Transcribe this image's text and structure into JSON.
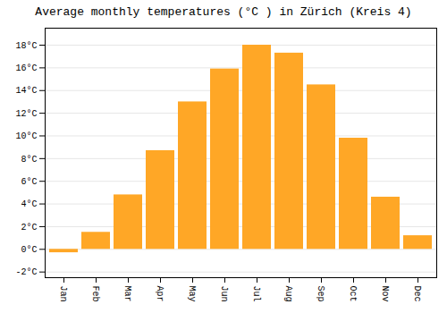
{
  "chart_data": {
    "type": "bar",
    "title": "Average monthly temperatures (°C ) in Zürich (Kreis 4)",
    "categories": [
      "Jan",
      "Feb",
      "Mar",
      "Apr",
      "May",
      "Jun",
      "Jul",
      "Aug",
      "Sep",
      "Oct",
      "Nov",
      "Dec"
    ],
    "values": [
      -0.3,
      1.5,
      4.8,
      8.7,
      13.0,
      15.9,
      18.0,
      17.3,
      14.5,
      9.8,
      4.6,
      1.2
    ],
    "color": "#FFA726",
    "ylim": [
      -2.5,
      19.5
    ],
    "yticks": [
      {
        "value": -2,
        "label": "-2°C"
      },
      {
        "value": 0,
        "label": "0°C"
      },
      {
        "value": 2,
        "label": "2°C"
      },
      {
        "value": 4,
        "label": "4°C"
      },
      {
        "value": 6,
        "label": "6°C"
      },
      {
        "value": 8,
        "label": "8°C"
      },
      {
        "value": 10,
        "label": "10°C"
      },
      {
        "value": 12,
        "label": "12°C"
      },
      {
        "value": 14,
        "label": "14°C"
      },
      {
        "value": 16,
        "label": "16°C"
      },
      {
        "value": 18,
        "label": "18°C"
      }
    ],
    "grid": true
  }
}
